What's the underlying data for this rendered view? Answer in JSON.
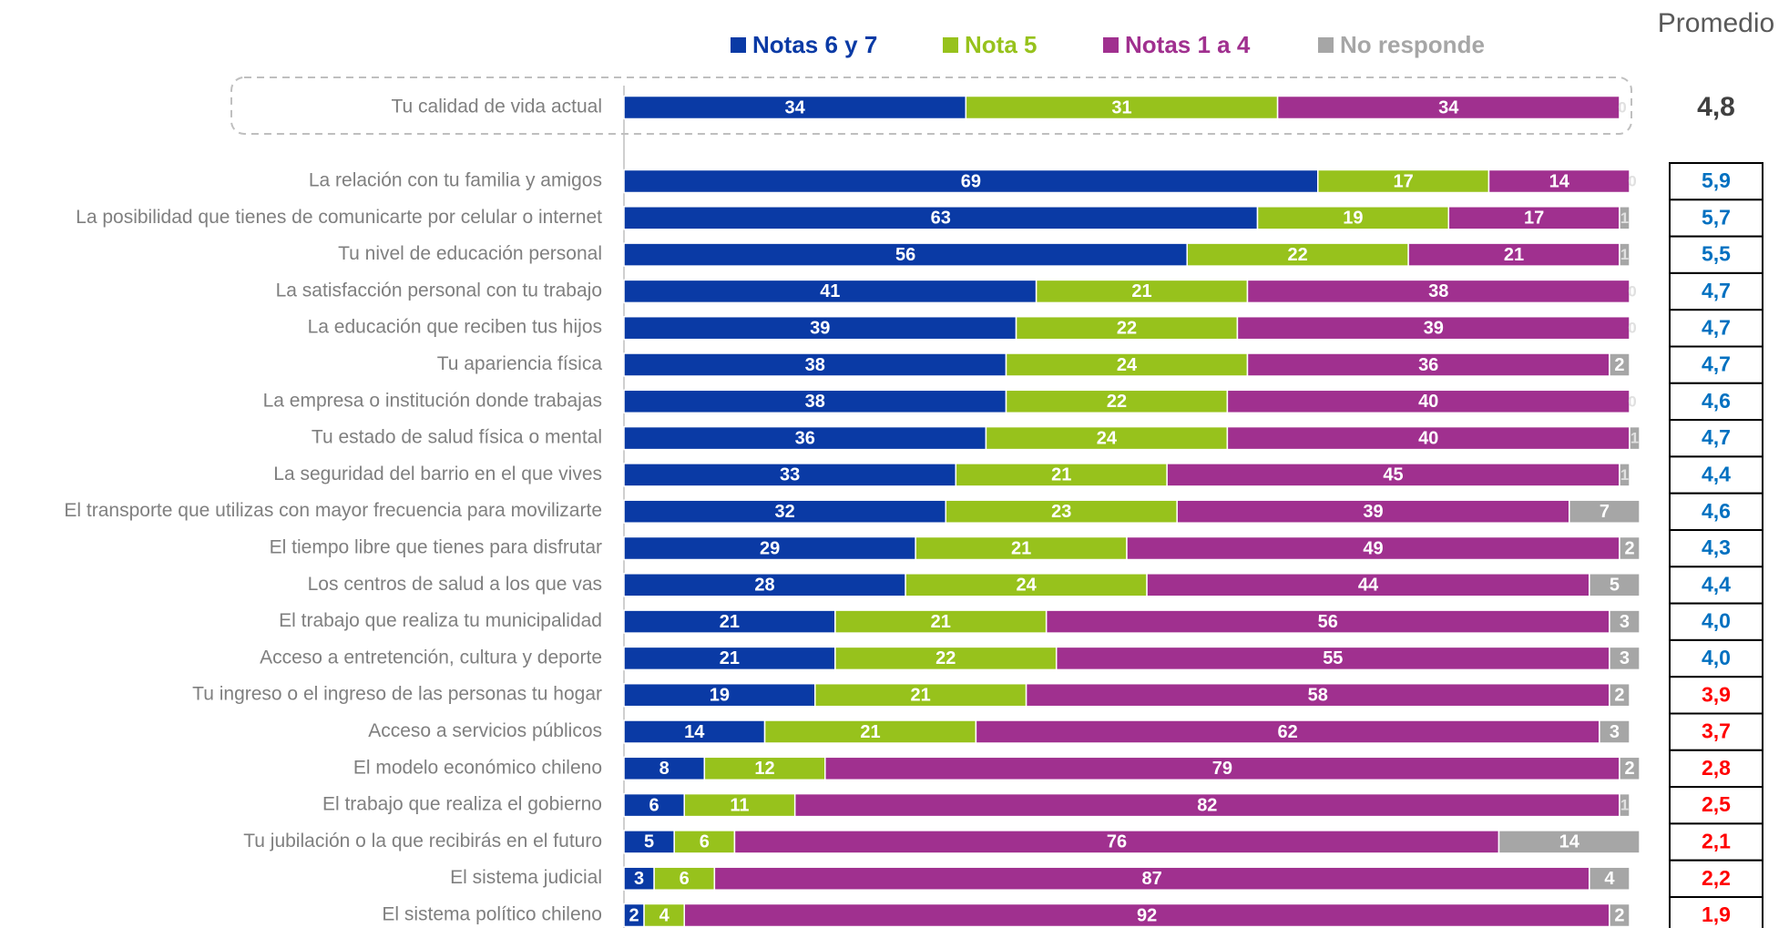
{
  "chart_data": {
    "type": "stacked-bar-horizontal",
    "categories": [
      "Tu calidad de vida actual",
      "La relación con tu familia y amigos",
      "La posibilidad que tienes de comunicarte por celular o internet",
      "Tu nivel de educación personal",
      "La satisfacción personal con tu trabajo",
      "La educación que reciben tus hijos",
      "Tu apariencia física",
      "La empresa o institución donde trabajas",
      "Tu estado de salud física o mental",
      "La seguridad del barrio en el que vives",
      "El transporte que utilizas con mayor frecuencia para movilizarte",
      "El tiempo libre que tienes para disfrutar",
      "Los centros de salud a los que vas",
      "El trabajo que realiza tu municipalidad",
      "Acceso a entretención, cultura y deporte",
      "Tu ingreso o el ingreso de las personas tu hogar",
      "Acceso a servicios públicos",
      "El modelo económico chileno",
      "El trabajo que realiza el gobierno",
      "Tu jubilación o la que recibirás en el futuro",
      "El sistema judicial",
      "El sistema político chileno"
    ],
    "series": [
      {
        "name": "Notas 6 y 7",
        "color": "#0a3aa5",
        "values": [
          34,
          69,
          63,
          56,
          41,
          39,
          38,
          38,
          36,
          33,
          32,
          29,
          28,
          21,
          21,
          19,
          14,
          8,
          6,
          5,
          3,
          2
        ]
      },
      {
        "name": "Nota 5",
        "color": "#97c21c",
        "values": [
          31,
          17,
          19,
          22,
          21,
          22,
          24,
          22,
          24,
          21,
          23,
          21,
          24,
          21,
          22,
          21,
          21,
          12,
          11,
          6,
          6,
          4
        ]
      },
      {
        "name": "Notas 1 a 4",
        "color": "#a0308f",
        "values": [
          34,
          14,
          17,
          21,
          38,
          39,
          36,
          40,
          40,
          45,
          39,
          49,
          44,
          56,
          55,
          58,
          62,
          79,
          82,
          76,
          87,
          92
        ]
      },
      {
        "name": "No responde",
        "color": "#a6a6a6",
        "values": [
          0,
          0,
          1,
          1,
          0,
          0,
          2,
          0,
          1,
          1,
          7,
          2,
          5,
          3,
          3,
          2,
          3,
          2,
          1,
          14,
          4,
          2
        ]
      }
    ],
    "xlim": [
      0,
      100
    ],
    "promedio": {
      "title": "Promedio",
      "values": [
        4.8,
        5.9,
        5.7,
        5.5,
        4.7,
        4.7,
        4.7,
        4.6,
        4.7,
        4.4,
        4.6,
        4.3,
        4.4,
        4.0,
        4.0,
        3.9,
        3.7,
        2.8,
        2.5,
        2.1,
        2.2,
        1.9
      ],
      "value_labels": [
        "4,8",
        "5,9",
        "5,7",
        "5,5",
        "4,7",
        "4,7",
        "4,7",
        "4,6",
        "4,7",
        "4,4",
        "4,6",
        "4,3",
        "4,4",
        "4,0",
        "4,0",
        "3,9",
        "3,7",
        "2,8",
        "2,5",
        "2,1",
        "2,2",
        "1,9"
      ],
      "colors": [
        "#404040",
        "#0070c0",
        "#0070c0",
        "#0070c0",
        "#0070c0",
        "#0070c0",
        "#0070c0",
        "#0070c0",
        "#0070c0",
        "#0070c0",
        "#0070c0",
        "#0070c0",
        "#0070c0",
        "#0070c0",
        "#0070c0",
        "#ff0000",
        "#ff0000",
        "#ff0000",
        "#ff0000",
        "#ff0000",
        "#ff0000",
        "#ff0000"
      ]
    }
  }
}
